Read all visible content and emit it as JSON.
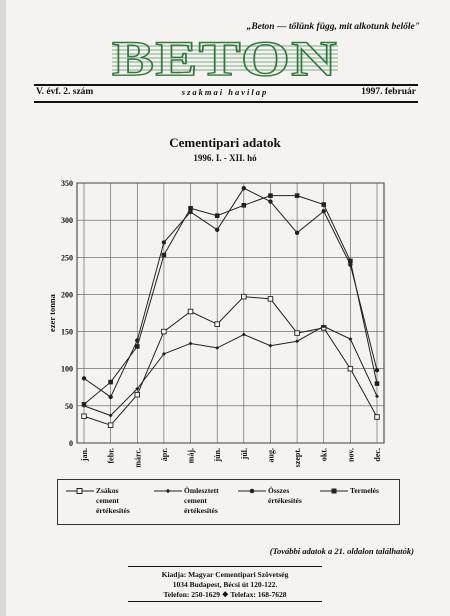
{
  "header": {
    "motto": "„Beton — tőlünk függ, mit alkotunk belőle\"",
    "logo_text": "BETON",
    "issue": "V. évf. 2. szám",
    "subtitle": "szakmai havilap",
    "date": "1997. február"
  },
  "chart_data": {
    "type": "line",
    "title": "Cementipari adatok",
    "subtitle": "1996. I. - XII. hó",
    "ylabel": "ezer tonna",
    "xlabel": "",
    "ylim": [
      0,
      350
    ],
    "yticks": [
      0,
      50,
      100,
      150,
      200,
      250,
      300,
      350
    ],
    "grid": true,
    "legend_position": "bottom",
    "categories": [
      "jan.",
      "febr.",
      "márc.",
      "ápr.",
      "máj.",
      "jún.",
      "júl.",
      "aug.",
      "szept.",
      "okt.",
      "nov.",
      "dec."
    ],
    "series": [
      {
        "name": "Zsákos\ncement\nértékesítés",
        "marker": "open-square",
        "values": [
          36,
          24,
          65,
          150,
          177,
          160,
          197,
          194,
          148,
          155,
          100,
          35
        ]
      },
      {
        "name": "Ömlesztett\ncement\nértékesítés",
        "marker": "small-diamond",
        "values": [
          50,
          37,
          73,
          120,
          134,
          128,
          146,
          131,
          137,
          157,
          140,
          63
        ]
      },
      {
        "name": "Összes\nértékesítés",
        "marker": "dot",
        "values": [
          87,
          62,
          138,
          270,
          311,
          287,
          343,
          325,
          283,
          312,
          240,
          98
        ]
      },
      {
        "name": "Termelés",
        "marker": "filled-square",
        "values": [
          52,
          82,
          130,
          253,
          316,
          306,
          320,
          333,
          333,
          321,
          245,
          80
        ]
      }
    ]
  },
  "note": "(További adatok a 21. oldalon találhatók)",
  "publisher": {
    "line1": "Kiadja: Magyar Cementipari Szövetség",
    "line2": "1034 Budapest, Bécsi út 120-122.",
    "line3": "Telefon: 250-1629  ❖  Telefax: 168-7628"
  }
}
